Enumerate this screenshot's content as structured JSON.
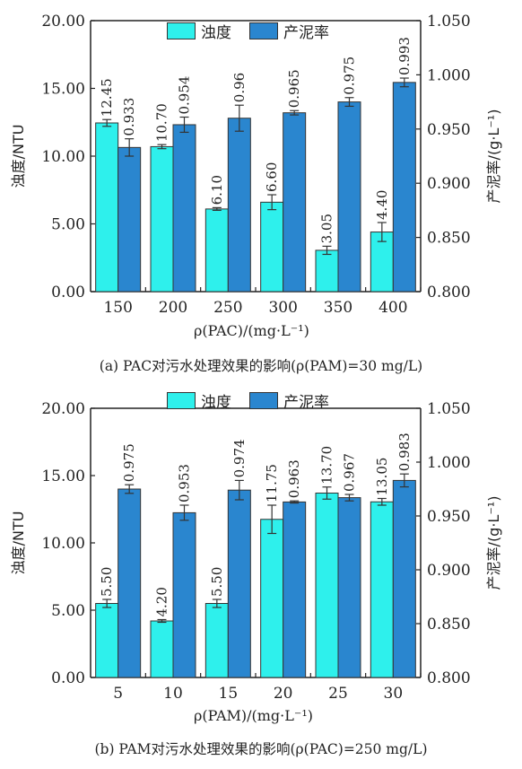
{
  "colors": {
    "turbidity": "#2ef0ec",
    "sludge": "#2a86cf",
    "axis": "#222222"
  },
  "legend": {
    "turbidity": "浊度",
    "sludge": "产泥率"
  },
  "chart_data": [
    {
      "type": "bar",
      "caption": "(a) PAC对污水处理效果的影响(ρ(PAM)=30 mg/L)",
      "xlabel": "ρ(PAC)/(mg·L⁻¹)",
      "ylabel_left": "浊度/NTU",
      "ylabel_right": "产泥率/(g·L⁻¹)",
      "categories": [
        "150",
        "200",
        "250",
        "300",
        "350",
        "400"
      ],
      "ylim_left": [
        0,
        20
      ],
      "ylim_right": [
        0.8,
        1.05
      ],
      "yticks_left": [
        "0.00",
        "5.00",
        "10.00",
        "15.00",
        "20.00"
      ],
      "yticks_right": [
        "0.800",
        "0.850",
        "0.900",
        "0.950",
        "1.000",
        "1.050"
      ],
      "series": [
        {
          "name": "浊度",
          "axis": "left",
          "values": [
            12.45,
            10.7,
            6.1,
            6.6,
            3.05,
            4.4
          ],
          "labels": [
            "12.45",
            "10.70",
            "6.10",
            "6.60",
            "3.05",
            "4.40"
          ],
          "errors": [
            0.25,
            0.15,
            0.1,
            0.55,
            0.3,
            0.7
          ]
        },
        {
          "name": "产泥率",
          "axis": "right",
          "values": [
            0.933,
            0.954,
            0.96,
            0.965,
            0.975,
            0.993
          ],
          "labels": [
            "0.933",
            "0.954",
            "0.96",
            "0.965",
            "0.975",
            "0.993"
          ],
          "errors": [
            0.008,
            0.007,
            0.012,
            0.002,
            0.004,
            0.004
          ]
        }
      ]
    },
    {
      "type": "bar",
      "caption": "(b) PAM对污水处理效果的影响(ρ(PAC)=250 mg/L)",
      "xlabel": "ρ(PAM)/(mg·L⁻¹)",
      "ylabel_left": "浊度/NTU",
      "ylabel_right": "产泥率/(g·L⁻¹)",
      "categories": [
        "5",
        "10",
        "15",
        "20",
        "25",
        "30"
      ],
      "ylim_left": [
        0,
        20
      ],
      "ylim_right": [
        0.8,
        1.05
      ],
      "yticks_left": [
        "0.00",
        "5.00",
        "10.00",
        "15.00",
        "20.00"
      ],
      "yticks_right": [
        "0.800",
        "0.850",
        "0.900",
        "0.950",
        "1.000",
        "1.050"
      ],
      "series": [
        {
          "name": "浊度",
          "axis": "left",
          "values": [
            5.5,
            4.2,
            5.5,
            11.75,
            13.7,
            13.05
          ],
          "labels": [
            "5.50",
            "4.20",
            "5.50",
            "11.75",
            "13.70",
            "13.05"
          ],
          "errors": [
            0.3,
            0.1,
            0.3,
            1.05,
            0.45,
            0.25
          ]
        },
        {
          "name": "产泥率",
          "axis": "right",
          "values": [
            0.975,
            0.953,
            0.974,
            0.963,
            0.967,
            0.983
          ],
          "labels": [
            "0.975",
            "0.953",
            "0.974",
            "0.963",
            "0.967",
            "0.983"
          ],
          "errors": [
            0.004,
            0.007,
            0.009,
            0.001,
            0.003,
            0.006
          ]
        }
      ]
    }
  ]
}
